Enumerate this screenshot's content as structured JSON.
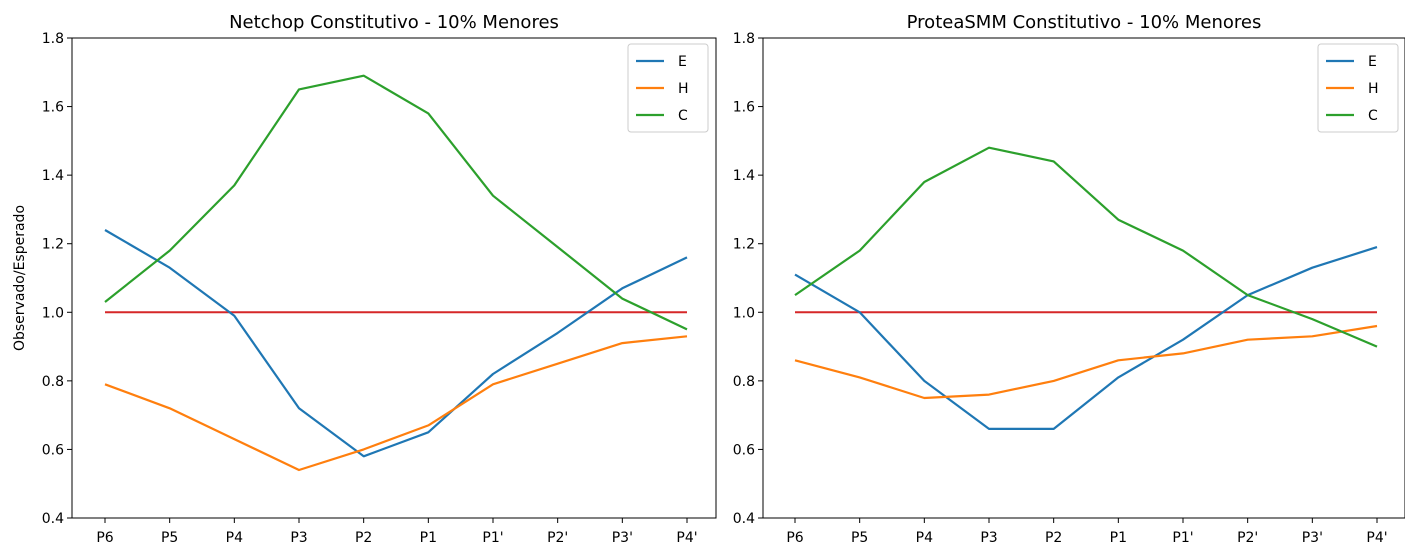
{
  "chart_data": [
    {
      "type": "line",
      "title": "Netchop Constitutivo - 10% Menores",
      "xlabel": "",
      "ylabel": "Observado/Esperado",
      "categories": [
        "P6",
        "P5",
        "P4",
        "P3",
        "P2",
        "P1",
        "P1'",
        "P2'",
        "P3'",
        "P4'"
      ],
      "ylim": [
        0.4,
        1.8
      ],
      "yticks": [
        "0.4",
        "0.6",
        "0.8",
        "1.0",
        "1.2",
        "1.4",
        "1.6",
        "1.8"
      ],
      "legend_position": "top-right",
      "grid": false,
      "series": [
        {
          "name": "E",
          "color": "#1f77b4",
          "values": [
            1.24,
            1.13,
            0.99,
            0.72,
            0.58,
            0.65,
            0.82,
            0.94,
            1.07,
            1.16
          ]
        },
        {
          "name": "H",
          "color": "#ff7f0e",
          "values": [
            0.79,
            0.72,
            0.63,
            0.54,
            0.6,
            0.67,
            0.79,
            0.85,
            0.91,
            0.93
          ]
        },
        {
          "name": "C",
          "color": "#2ca02c",
          "values": [
            1.03,
            1.18,
            1.37,
            1.65,
            1.69,
            1.58,
            1.34,
            1.19,
            1.04,
            0.95
          ]
        }
      ],
      "reference_line": {
        "value": 1.0,
        "color": "#d62728"
      }
    },
    {
      "type": "line",
      "title": "ProteaSMM Constitutivo - 10% Menores",
      "xlabel": "",
      "ylabel": "",
      "categories": [
        "P6",
        "P5",
        "P4",
        "P3",
        "P2",
        "P1",
        "P1'",
        "P2'",
        "P3'",
        "P4'"
      ],
      "ylim": [
        0.4,
        1.8
      ],
      "yticks": [
        "0.4",
        "0.6",
        "0.8",
        "1.0",
        "1.2",
        "1.4",
        "1.6",
        "1.8"
      ],
      "legend_position": "top-right",
      "grid": false,
      "series": [
        {
          "name": "E",
          "color": "#1f77b4",
          "values": [
            1.11,
            1.0,
            0.8,
            0.66,
            0.66,
            0.81,
            0.92,
            1.05,
            1.13,
            1.19
          ]
        },
        {
          "name": "H",
          "color": "#ff7f0e",
          "values": [
            0.86,
            0.81,
            0.75,
            0.76,
            0.8,
            0.86,
            0.88,
            0.92,
            0.93,
            0.96
          ]
        },
        {
          "name": "C",
          "color": "#2ca02c",
          "values": [
            1.05,
            1.18,
            1.38,
            1.48,
            1.44,
            1.27,
            1.18,
            1.05,
            0.98,
            0.9
          ]
        }
      ],
      "reference_line": {
        "value": 1.0,
        "color": "#d62728"
      }
    }
  ]
}
